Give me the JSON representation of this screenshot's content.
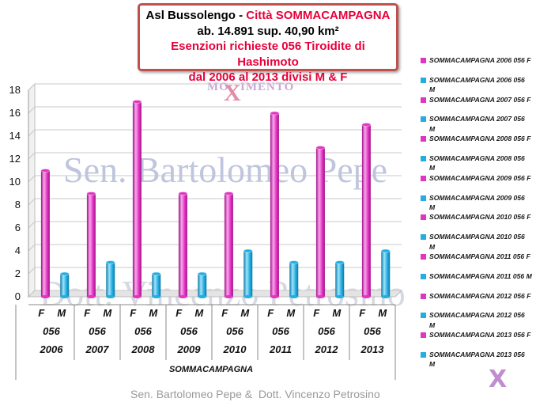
{
  "title": {
    "line1_black": "Asl Bussolengo - ",
    "line1_red": "Città SOMMACAMPAGNA",
    "line2": "ab. 14.891 sup. 40,90 km²",
    "line3": "Esenzioni richieste 056 Tiroidite di Hashimoto",
    "line4": "dal 2006 al 2013     divisi M & F"
  },
  "watermarks": {
    "logo": "MOXIMENTO",
    "logo_left": "MO",
    "logo_x": "X",
    "logo_right": "IMENTO",
    "name1": "Sen. Bartolomeo Pepe",
    "name2": "Dott. Vincenzo Petrosino"
  },
  "footer": "Sen. Bartolomeo Pepe &  Dott. Vincenzo Petrosino",
  "footer_logo": "X",
  "colors": {
    "female": "#e234c2",
    "male": "#22aee2",
    "title_red": "#e8003a",
    "border": "#c0504d"
  },
  "chart_data": {
    "type": "bar",
    "ylim": [
      0,
      18
    ],
    "yticks": [
      0,
      2,
      4,
      6,
      8,
      10,
      12,
      14,
      16,
      18
    ],
    "grid": true,
    "legend_position": "right",
    "xlabel": "SOMMACAMPAGNA",
    "code_label": "056",
    "groups": [
      {
        "year": "2006",
        "F": 11,
        "M": 2
      },
      {
        "year": "2007",
        "F": 9,
        "M": 3
      },
      {
        "year": "2008",
        "F": 17,
        "M": 2
      },
      {
        "year": "2009",
        "F": 9,
        "M": 2
      },
      {
        "year": "2010",
        "F": 9,
        "M": 4
      },
      {
        "year": "2011",
        "F": 16,
        "M": 3
      },
      {
        "year": "2012",
        "F": 13,
        "M": 3
      },
      {
        "year": "2013",
        "F": 15,
        "M": 4
      }
    ],
    "sex_labels": [
      "F",
      "M"
    ],
    "legend": [
      {
        "label": "SOMMACAMPAGNA 2006 056 F",
        "sex": "F"
      },
      {
        "label": "SOMMACAMPAGNA 2006 056 M",
        "sex": "M"
      },
      {
        "label": "SOMMACAMPAGNA 2007 056 F",
        "sex": "F"
      },
      {
        "label": "SOMMACAMPAGNA 2007 056 M",
        "sex": "M"
      },
      {
        "label": "SOMMACAMPAGNA 2008 056 F",
        "sex": "F"
      },
      {
        "label": "SOMMACAMPAGNA 2008 056 M",
        "sex": "M"
      },
      {
        "label": "SOMMACAMPAGNA 2009 056 F",
        "sex": "F"
      },
      {
        "label": "SOMMACAMPAGNA 2009 056 M",
        "sex": "M"
      },
      {
        "label": "SOMMACAMPAGNA 2010 056 F",
        "sex": "F"
      },
      {
        "label": "SOMMACAMPAGNA 2010 056 M",
        "sex": "M"
      },
      {
        "label": "SOMMACAMPAGNA 2011 056 F",
        "sex": "F"
      },
      {
        "label": "SOMMACAMPAGNA 2011 056 M",
        "sex": "M"
      },
      {
        "label": "SOMMACAMPAGNA 2012 056 F",
        "sex": "F"
      },
      {
        "label": "SOMMACAMPAGNA 2012 056 M",
        "sex": "M"
      },
      {
        "label": "SOMMACAMPAGNA 2013 056 F",
        "sex": "F"
      },
      {
        "label": "SOMMACAMPAGNA 2013 056 M",
        "sex": "M"
      }
    ]
  }
}
